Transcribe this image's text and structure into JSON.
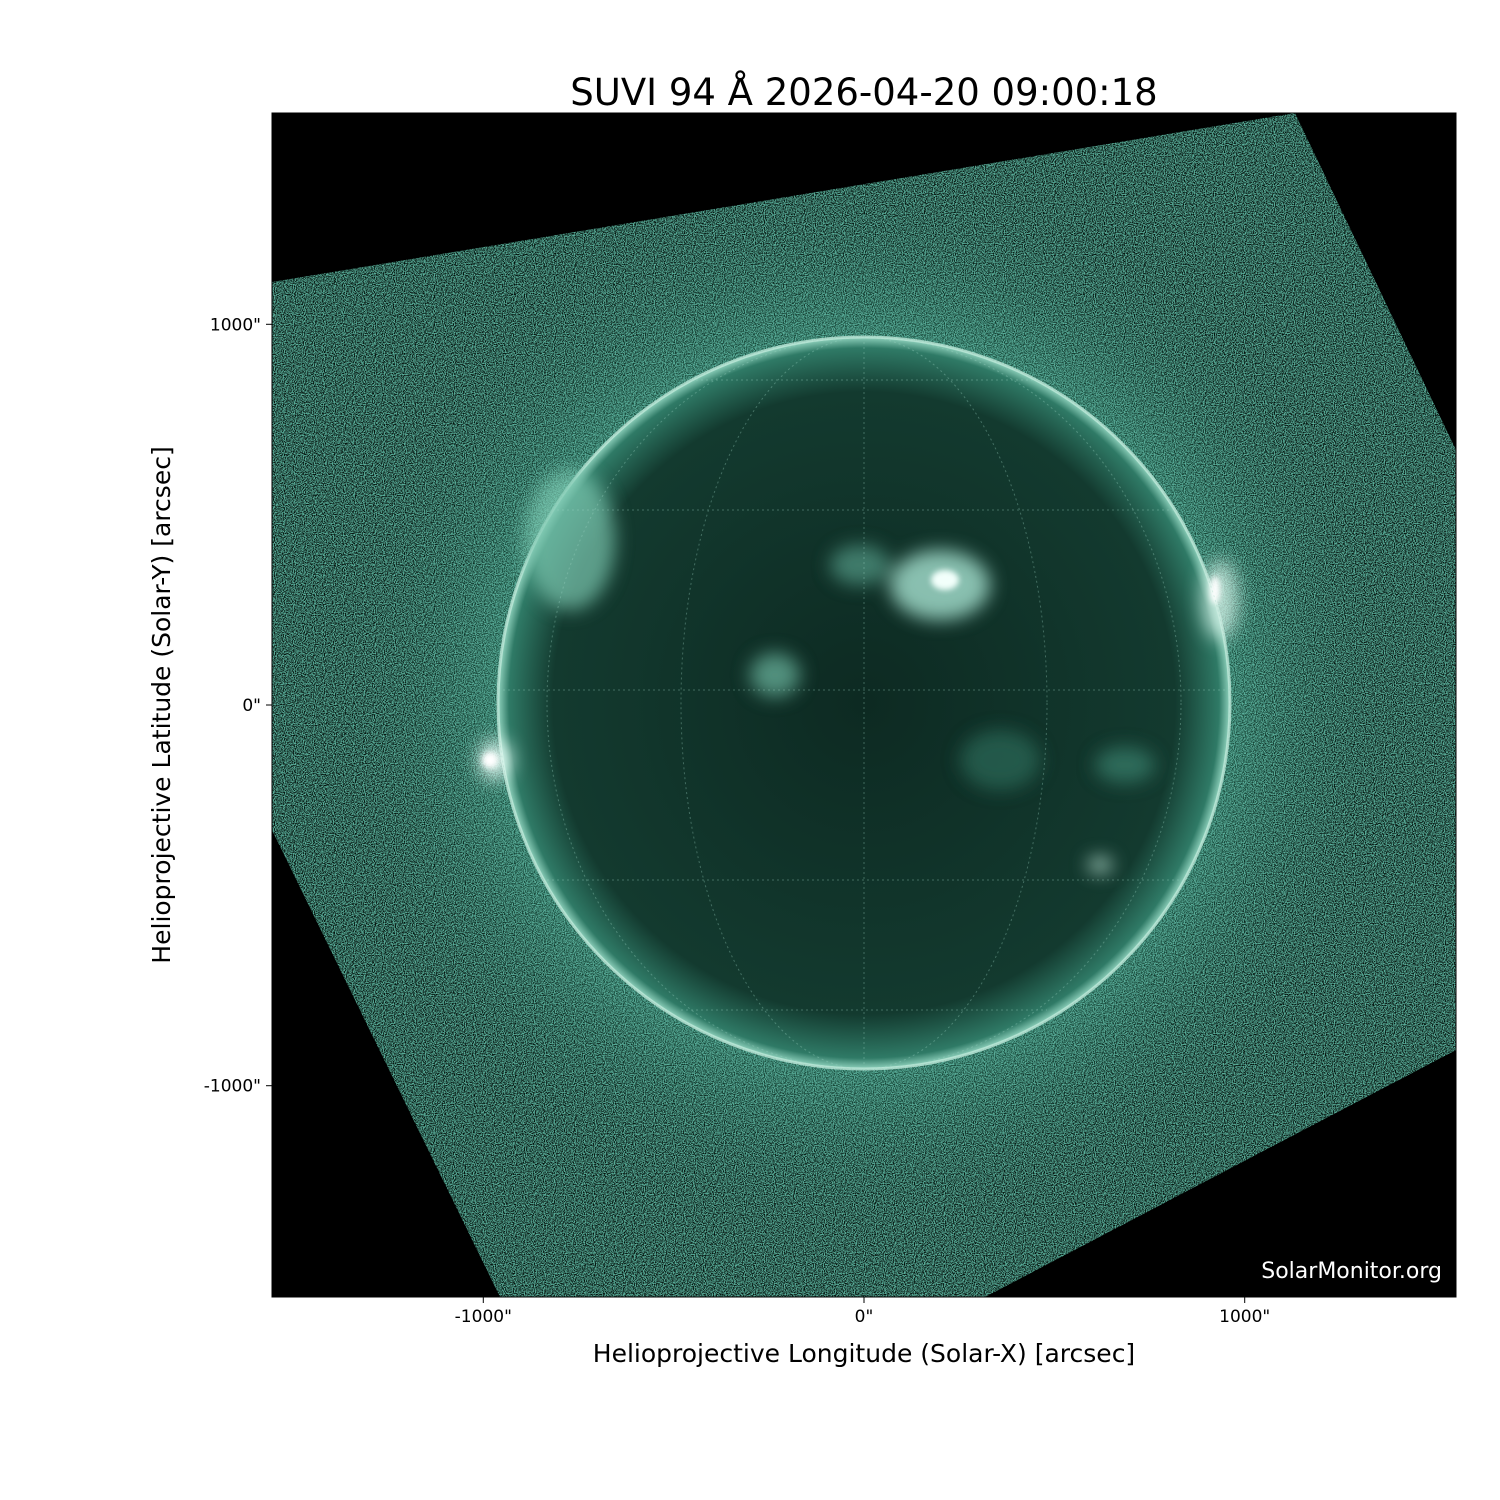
{
  "chart_data": {
    "type": "image",
    "title": "SUVI 94 Å 2026-04-20 09:00:18",
    "xlabel": "Helioprojective Longitude (Solar-X) [arcsec]",
    "ylabel": "Helioprojective Latitude (Solar-Y) [arcsec]",
    "xlim": [
      -1555,
      1555
    ],
    "ylim": [
      -1555,
      1555
    ],
    "xticks": [
      {
        "value": -1000,
        "label": "-1000\""
      },
      {
        "value": 0,
        "label": "0\""
      },
      {
        "value": 1000,
        "label": "1000\""
      }
    ],
    "yticks": [
      {
        "value": 1000,
        "label": "1000\""
      },
      {
        "value": 0,
        "label": "0\""
      },
      {
        "value": -1000,
        "label": "-1000\""
      }
    ],
    "solar_radius_arcsec": 958,
    "colormap": "teal-green on black",
    "grid": "heliographic lon/lat overlay",
    "colors": {
      "accent": "#1f8a6a",
      "limb": "#cfeee3",
      "background": "#000000"
    }
  },
  "watermark": "SolarMonitor.org"
}
